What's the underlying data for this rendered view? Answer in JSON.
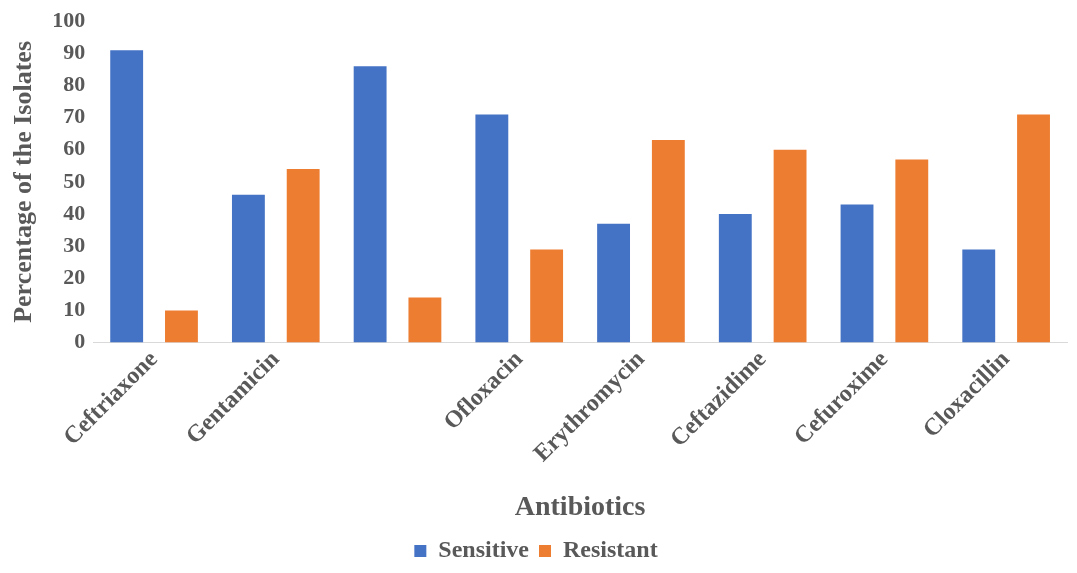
{
  "chart_data": {
    "type": "bar",
    "xlabel": "Antibiotics",
    "ylabel": "Percentage of the Isolates",
    "categories": [
      "Ceftriaxone",
      "Gentamicin",
      null,
      "Ofloxacin",
      "Erythromycin",
      "Ceftazidime",
      "Cefuroxime",
      "Cloxacillin"
    ],
    "series": [
      {
        "name": "Sensitive",
        "color": "#4472c4",
        "values": [
          91,
          46,
          86,
          71,
          37,
          40,
          43,
          29
        ]
      },
      {
        "name": "Resistant",
        "color": "#ed7d31",
        "values": [
          10,
          54,
          14,
          29,
          63,
          60,
          57,
          71
        ]
      }
    ],
    "ylim": [
      0,
      100
    ],
    "yticks": [
      0,
      10,
      20,
      30,
      40,
      50,
      60,
      70,
      80,
      90,
      100
    ],
    "grid": false,
    "legend": "bottom"
  }
}
